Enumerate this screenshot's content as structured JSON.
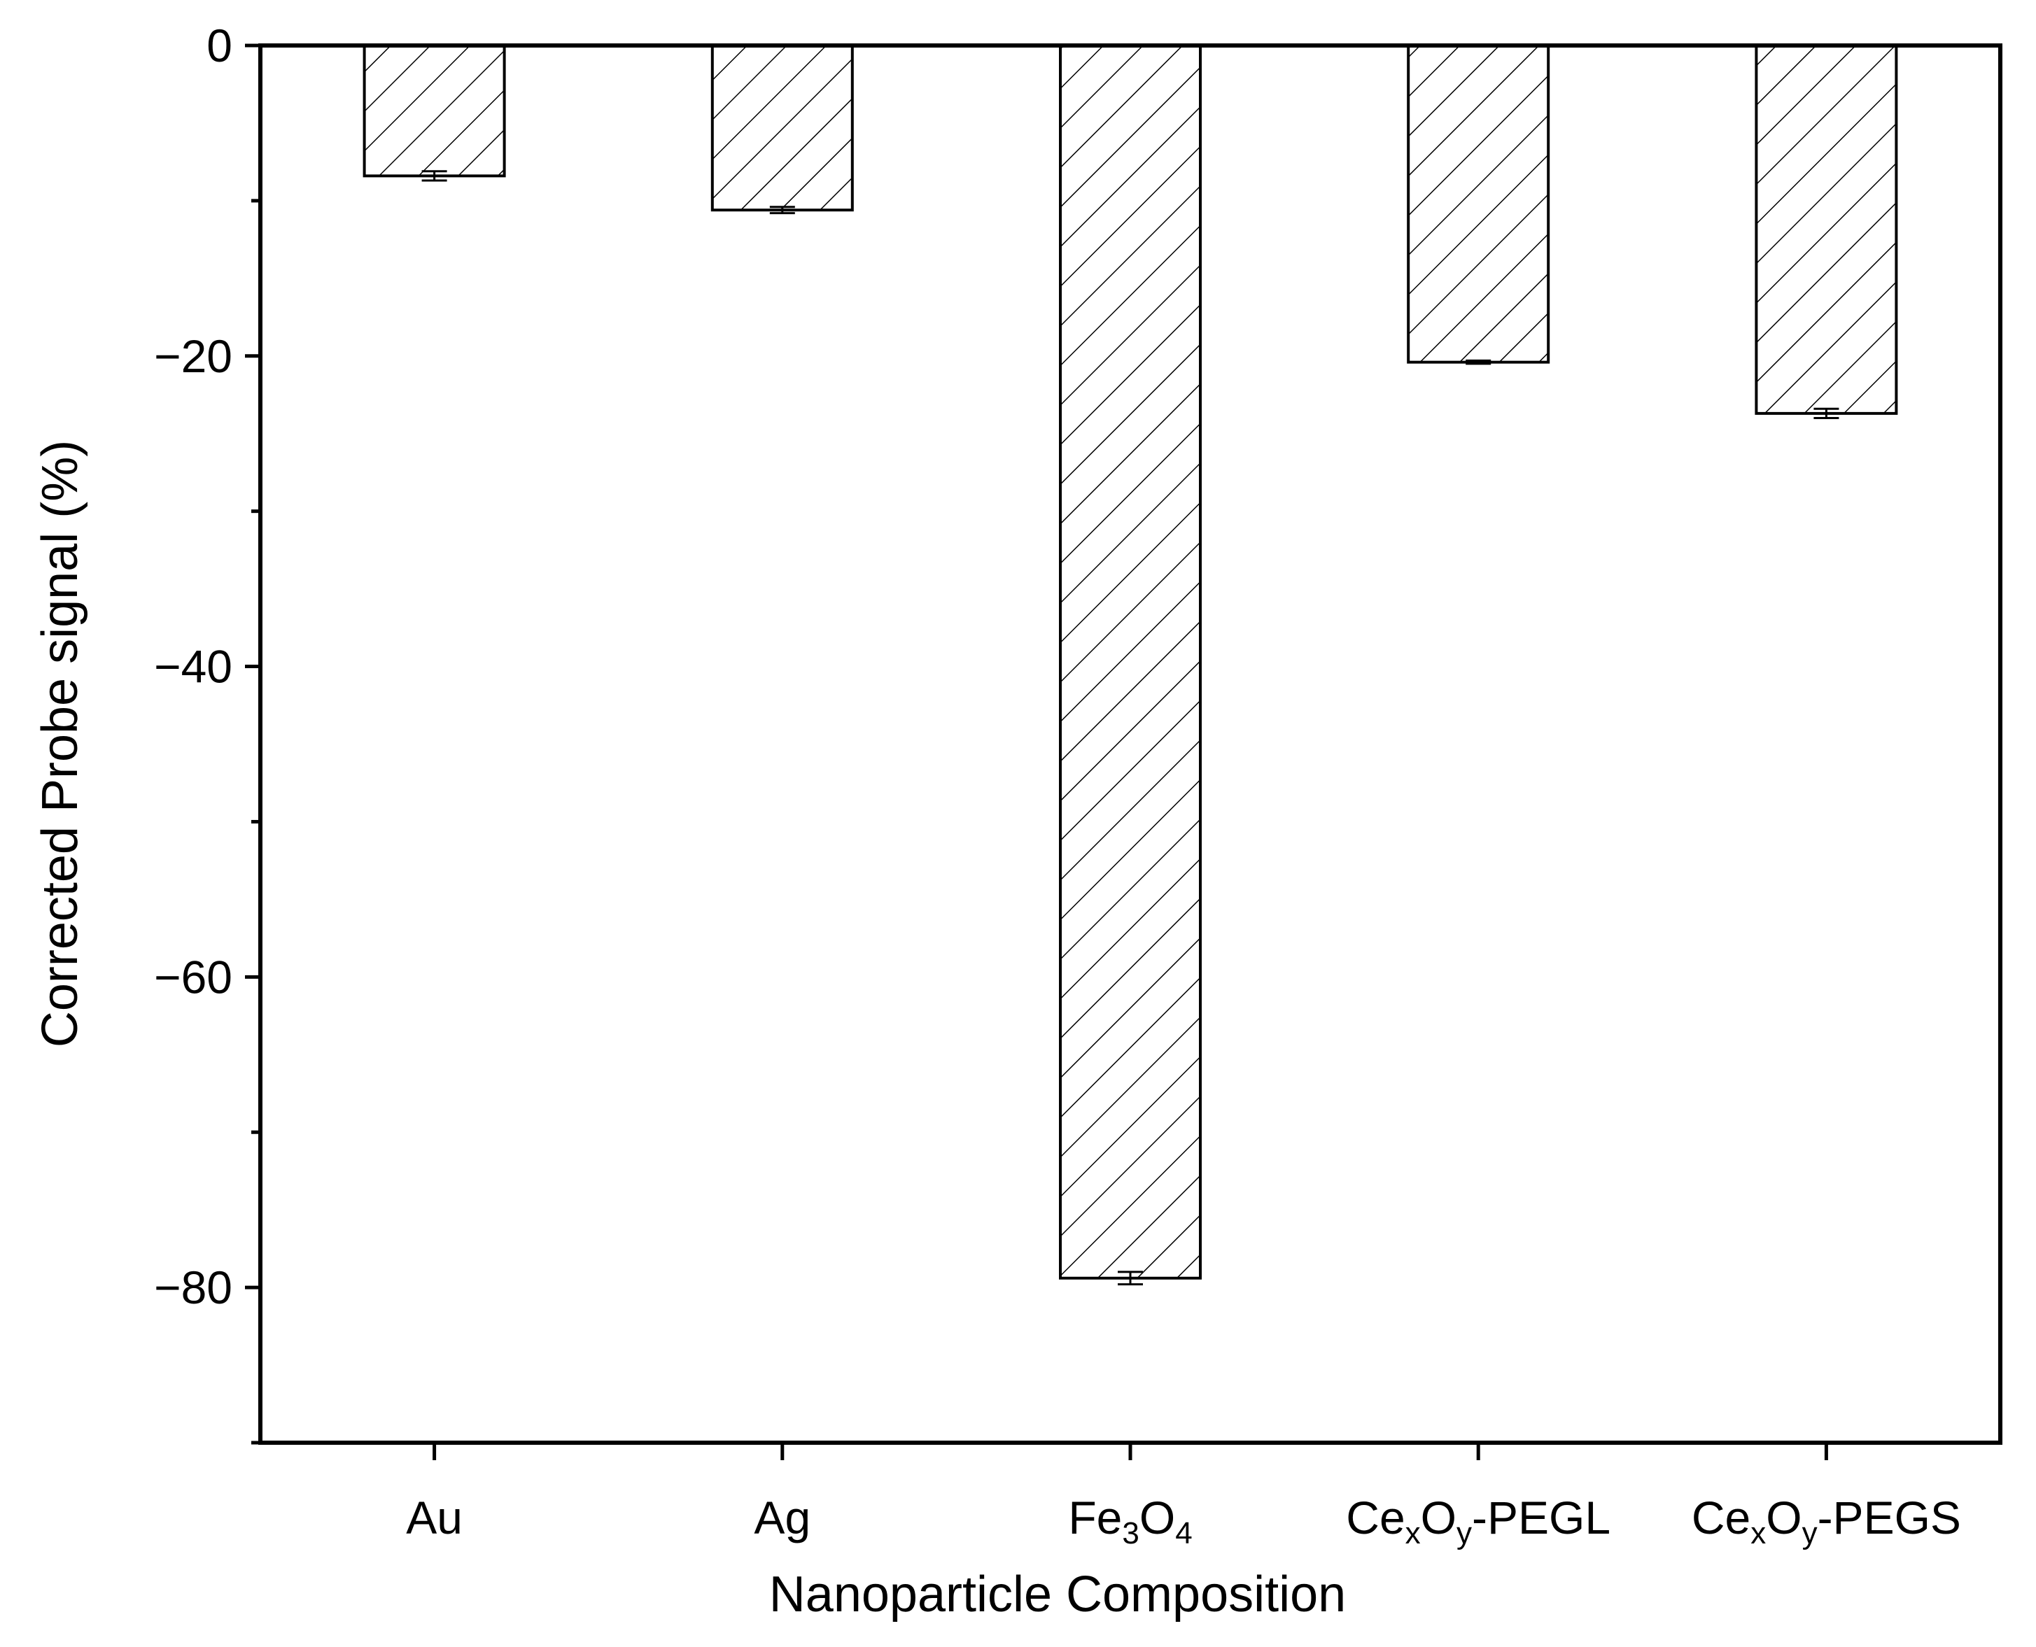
{
  "chart_data": {
    "type": "bar",
    "title": "",
    "xlabel": "Nanoparticle Composition",
    "ylabel": "Corrected Probe signal (%)",
    "categories": [
      {
        "text": "Au",
        "parts": [
          {
            "t": "Au"
          }
        ]
      },
      {
        "text": "Ag",
        "parts": [
          {
            "t": "Ag"
          }
        ]
      },
      {
        "text": "Fe3O4",
        "parts": [
          {
            "t": "Fe"
          },
          {
            "t": "3",
            "sub": true
          },
          {
            "t": "O"
          },
          {
            "t": "4",
            "sub": true
          }
        ]
      },
      {
        "text": "CexOy-PEGL",
        "parts": [
          {
            "t": "Ce"
          },
          {
            "t": "x",
            "sub": true
          },
          {
            "t": "O"
          },
          {
            "t": "y",
            "sub": true
          },
          {
            "t": "-PEGL"
          }
        ]
      },
      {
        "text": "CexOy-PEGS",
        "parts": [
          {
            "t": "Ce"
          },
          {
            "t": "x",
            "sub": true
          },
          {
            "t": "O"
          },
          {
            "t": "y",
            "sub": true
          },
          {
            "t": "-PEGS"
          }
        ]
      }
    ],
    "values": [
      -8.4,
      -10.6,
      -79.4,
      -20.4,
      -23.7
    ],
    "errors": [
      0.3,
      0.2,
      0.4,
      0.1,
      0.3
    ],
    "ylim": [
      -90,
      0
    ],
    "yticks": [
      0,
      -20,
      -40,
      -60,
      -80
    ],
    "ytick_labels": [
      "0",
      "−20",
      "−40",
      "−60",
      "−80"
    ],
    "minor_yticks": [
      -10,
      -30,
      -50,
      -70,
      -90
    ],
    "bar_pattern": "diagonal-hatch",
    "bar_fill": "#ffffff",
    "line_color": "#000000",
    "grid": false,
    "legend": "none"
  }
}
